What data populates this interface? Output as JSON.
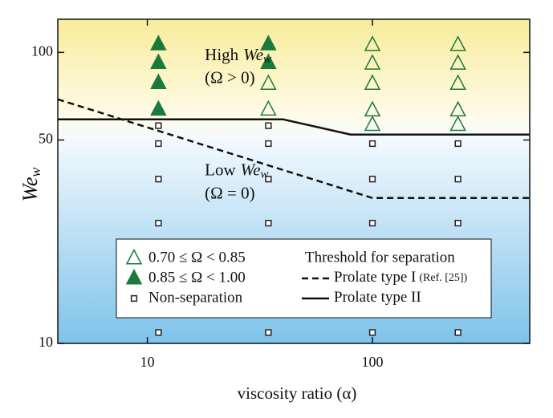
{
  "chart_data": {
    "type": "scatter",
    "x_label": "viscosity ratio (α)",
    "y_label": {
      "symbol": "We",
      "sub": "w"
    },
    "log_x": true,
    "log_y": true,
    "xlim": [
      4,
      500
    ],
    "ylim": [
      10,
      130
    ],
    "xticks": [
      10,
      100
    ],
    "yticks": [
      10,
      50,
      100
    ],
    "annotations": [
      {
        "text": "High",
        "symbol": "We",
        "sub": "w",
        "x": 18,
        "y": 97
      },
      {
        "text": "(Ω > 0)",
        "x": 18,
        "y": 81
      },
      {
        "text": "Low",
        "symbol": "We",
        "sub": "w",
        "x": 18,
        "y": 39
      },
      {
        "text": "(Ω = 0)",
        "x": 18,
        "y": 32.5
      }
    ],
    "legend_title": "Threshold for separation",
    "series": [
      {
        "name": "0.70 ≤ Ω < 0.85",
        "kind": "scatter",
        "marker": "triangle-open",
        "color": "#1b7a3b",
        "x": [
          34.5,
          34.5,
          100,
          100,
          100,
          100,
          100,
          240,
          240,
          240,
          240,
          240
        ],
        "values": [
          78,
          63.6,
          106,
          91.5,
          78,
          63.2,
          56.3,
          106,
          91.5,
          78,
          63.2,
          56.3
        ]
      },
      {
        "name": "0.85 ≤ Ω < 1.00",
        "kind": "scatter",
        "marker": "triangle-filled",
        "color": "#1b7a3b",
        "x": [
          11.2,
          11.2,
          11.2,
          11.2,
          34.5,
          34.5
        ],
        "values": [
          106.6,
          92,
          78.5,
          63.6,
          106.6,
          92
        ]
      },
      {
        "name": "Non-separation",
        "kind": "scatter",
        "marker": "square-open",
        "color": "#222222",
        "x": [
          11.2,
          11.2,
          11.2,
          11.2,
          11.2,
          34.5,
          34.5,
          34.5,
          34.5,
          34.5,
          100,
          100,
          100,
          100,
          240,
          240,
          240,
          240
        ],
        "values": [
          56,
          48.6,
          36.7,
          25.9,
          10.9,
          56,
          48.6,
          36.7,
          25.9,
          10.9,
          48.6,
          36.7,
          25.9,
          10.9,
          48.6,
          36.7,
          25.9,
          10.9
        ]
      },
      {
        "name": "Prolate type I",
        "note": "(Ref. [25])",
        "kind": "line",
        "dash": true,
        "color": "#111111",
        "x": [
          4,
          100,
          500
        ],
        "values": [
          69,
          31.6,
          31.6
        ]
      },
      {
        "name": "Prolate type II",
        "kind": "line",
        "dash": false,
        "color": "#111111",
        "x": [
          4,
          40,
          80,
          500
        ],
        "values": [
          58.9,
          58.9,
          52.2,
          52.2
        ]
      }
    ]
  }
}
